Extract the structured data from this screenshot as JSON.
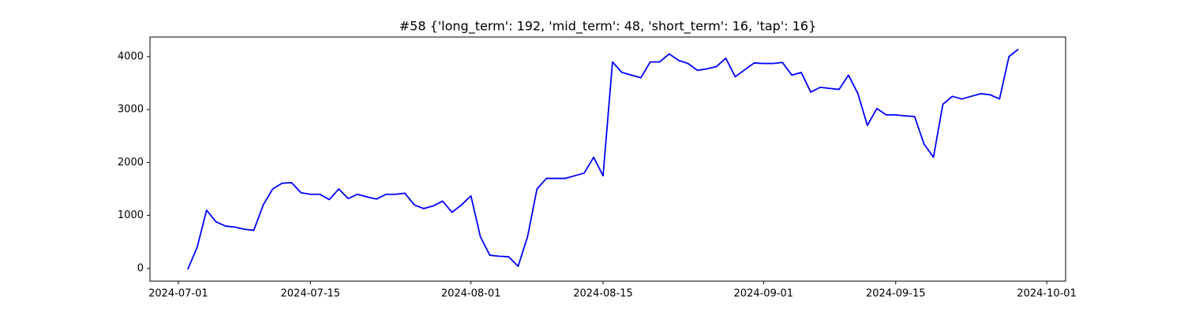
{
  "chart_data": {
    "type": "line",
    "title": "#58 {'long_term': 192, 'mid_term': 48, 'short_term': 16, 'tap': 16}",
    "x": [
      "2024-07-02",
      "2024-07-03",
      "2024-07-04",
      "2024-07-05",
      "2024-07-06",
      "2024-07-07",
      "2024-07-08",
      "2024-07-09",
      "2024-07-10",
      "2024-07-11",
      "2024-07-12",
      "2024-07-13",
      "2024-07-14",
      "2024-07-15",
      "2024-07-16",
      "2024-07-17",
      "2024-07-18",
      "2024-07-19",
      "2024-07-20",
      "2024-07-21",
      "2024-07-22",
      "2024-07-23",
      "2024-07-24",
      "2024-07-25",
      "2024-07-26",
      "2024-07-27",
      "2024-07-28",
      "2024-07-29",
      "2024-07-30",
      "2024-07-31",
      "2024-08-01",
      "2024-08-02",
      "2024-08-03",
      "2024-08-04",
      "2024-08-05",
      "2024-08-06",
      "2024-08-07",
      "2024-08-08",
      "2024-08-09",
      "2024-08-10",
      "2024-08-11",
      "2024-08-12",
      "2024-08-13",
      "2024-08-14",
      "2024-08-15",
      "2024-08-16",
      "2024-08-17",
      "2024-08-18",
      "2024-08-19",
      "2024-08-20",
      "2024-08-21",
      "2024-08-22",
      "2024-08-23",
      "2024-08-24",
      "2024-08-25",
      "2024-08-26",
      "2024-08-27",
      "2024-08-28",
      "2024-08-29",
      "2024-08-30",
      "2024-08-31",
      "2024-09-01",
      "2024-09-02",
      "2024-09-03",
      "2024-09-04",
      "2024-09-05",
      "2024-09-06",
      "2024-09-07",
      "2024-09-08",
      "2024-09-09",
      "2024-09-10",
      "2024-09-11",
      "2024-09-12",
      "2024-09-13",
      "2024-09-14",
      "2024-09-15",
      "2024-09-16",
      "2024-09-17",
      "2024-09-18",
      "2024-09-19",
      "2024-09-20",
      "2024-09-21",
      "2024-09-22",
      "2024-09-23",
      "2024-09-24",
      "2024-09-25",
      "2024-09-26",
      "2024-09-27",
      "2024-09-28"
    ],
    "series": [
      {
        "color": "#0000ff",
        "values": [
          -20,
          400,
          1100,
          880,
          800,
          780,
          740,
          720,
          1200,
          1500,
          1610,
          1620,
          1430,
          1400,
          1400,
          1300,
          1500,
          1320,
          1400,
          1350,
          1310,
          1400,
          1400,
          1420,
          1200,
          1130,
          1180,
          1270,
          1060,
          1200,
          1370,
          600,
          250,
          230,
          220,
          40,
          600,
          1500,
          1700,
          1700,
          1700,
          1750,
          1800,
          2100,
          1750,
          3900,
          3700,
          3650,
          3600,
          3900,
          3900,
          4050,
          3930,
          3870,
          3740,
          3770,
          3810,
          3970,
          3620,
          3750,
          3880,
          3870,
          3870,
          3890,
          3650,
          3700,
          3330,
          3420,
          3400,
          3380,
          3650,
          3300,
          2700,
          3020,
          2900,
          2900,
          2880,
          2870,
          2350,
          2100,
          3100,
          3250,
          3200,
          3250,
          3300,
          3280,
          3200,
          4000,
          4140
        ]
      }
    ],
    "xlim": [
      "2024-06-28",
      "2024-10-03"
    ],
    "xticks": [
      "2024-07-01",
      "2024-07-15",
      "2024-08-01",
      "2024-08-15",
      "2024-09-01",
      "2024-09-15",
      "2024-10-01"
    ],
    "ylim": [
      -240,
      4370
    ],
    "yticks": [
      0,
      1000,
      2000,
      3000,
      4000
    ],
    "grid": false
  }
}
